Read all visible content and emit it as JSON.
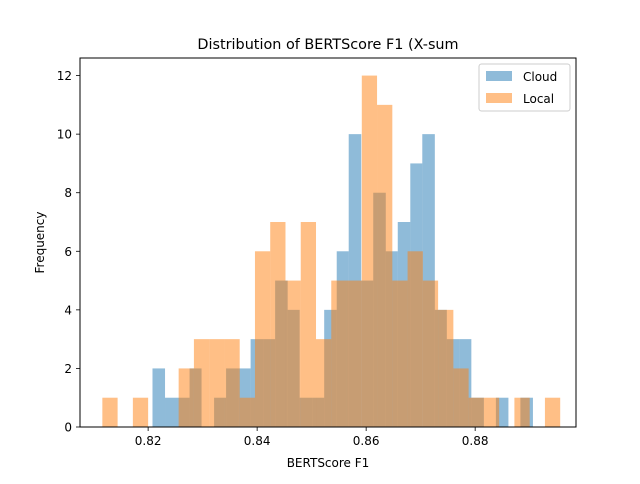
{
  "chart_data": {
    "type": "bar",
    "title": "Distribution of BERTScore F1 (X-sum",
    "xlabel": "BERTScore F1",
    "ylabel": "Frequency",
    "xlim": [
      0.8075,
      0.8985
    ],
    "ylim": [
      0,
      12.6
    ],
    "xticks": [
      {
        "value": 0.82,
        "label": "0.82"
      },
      {
        "value": 0.84,
        "label": "0.84"
      },
      {
        "value": 0.86,
        "label": "0.86"
      },
      {
        "value": 0.88,
        "label": "0.88"
      }
    ],
    "yticks": [
      {
        "value": 0,
        "label": "0"
      },
      {
        "value": 2,
        "label": "2"
      },
      {
        "value": 4,
        "label": "4"
      },
      {
        "value": 6,
        "label": "6"
      },
      {
        "value": 8,
        "label": "8"
      },
      {
        "value": 10,
        "label": "10"
      },
      {
        "value": 12,
        "label": "12"
      }
    ],
    "grid": false,
    "legend_position": "top-right",
    "series": [
      {
        "name": "Cloud",
        "color": "#1f77b4",
        "opacity": 0.5,
        "bins": [
          {
            "x0": 0.8208,
            "x1": 0.8231,
            "count": 2
          },
          {
            "x0": 0.8231,
            "x1": 0.8253,
            "count": 1
          },
          {
            "x0": 0.8253,
            "x1": 0.8276,
            "count": 1
          },
          {
            "x0": 0.8276,
            "x1": 0.8298,
            "count": 2
          },
          {
            "x0": 0.8321,
            "x1": 0.8343,
            "count": 1
          },
          {
            "x0": 0.8343,
            "x1": 0.8366,
            "count": 2
          },
          {
            "x0": 0.8366,
            "x1": 0.8388,
            "count": 2
          },
          {
            "x0": 0.8388,
            "x1": 0.8411,
            "count": 3
          },
          {
            "x0": 0.8411,
            "x1": 0.8433,
            "count": 3
          },
          {
            "x0": 0.8433,
            "x1": 0.8456,
            "count": 5
          },
          {
            "x0": 0.8456,
            "x1": 0.8478,
            "count": 4
          },
          {
            "x0": 0.8478,
            "x1": 0.8501,
            "count": 1
          },
          {
            "x0": 0.8501,
            "x1": 0.8523,
            "count": 1
          },
          {
            "x0": 0.8523,
            "x1": 0.8546,
            "count": 4
          },
          {
            "x0": 0.8546,
            "x1": 0.8568,
            "count": 6
          },
          {
            "x0": 0.8568,
            "x1": 0.8591,
            "count": 10
          },
          {
            "x0": 0.8591,
            "x1": 0.8613,
            "count": 5
          },
          {
            "x0": 0.8613,
            "x1": 0.8636,
            "count": 8
          },
          {
            "x0": 0.8636,
            "x1": 0.8658,
            "count": 6
          },
          {
            "x0": 0.8658,
            "x1": 0.8681,
            "count": 7
          },
          {
            "x0": 0.8681,
            "x1": 0.8703,
            "count": 9
          },
          {
            "x0": 0.8703,
            "x1": 0.8726,
            "count": 10
          },
          {
            "x0": 0.8726,
            "x1": 0.8748,
            "count": 4
          },
          {
            "x0": 0.8748,
            "x1": 0.8771,
            "count": 3
          },
          {
            "x0": 0.8771,
            "x1": 0.8793,
            "count": 3
          },
          {
            "x0": 0.8793,
            "x1": 0.8816,
            "count": 1
          },
          {
            "x0": 0.8838,
            "x1": 0.8861,
            "count": 1
          },
          {
            "x0": 0.8883,
            "x1": 0.8906,
            "count": 1
          }
        ]
      },
      {
        "name": "Local",
        "color": "#ff7f0e",
        "opacity": 0.5,
        "bins": [
          {
            "x0": 0.8116,
            "x1": 0.8144,
            "count": 1
          },
          {
            "x0": 0.8172,
            "x1": 0.82,
            "count": 1
          },
          {
            "x0": 0.8256,
            "x1": 0.8284,
            "count": 2
          },
          {
            "x0": 0.8284,
            "x1": 0.8312,
            "count": 3
          },
          {
            "x0": 0.8312,
            "x1": 0.834,
            "count": 3
          },
          {
            "x0": 0.834,
            "x1": 0.8368,
            "count": 3
          },
          {
            "x0": 0.8368,
            "x1": 0.8396,
            "count": 1
          },
          {
            "x0": 0.8396,
            "x1": 0.8424,
            "count": 6
          },
          {
            "x0": 0.8424,
            "x1": 0.8452,
            "count": 7
          },
          {
            "x0": 0.8452,
            "x1": 0.848,
            "count": 5
          },
          {
            "x0": 0.848,
            "x1": 0.8508,
            "count": 7
          },
          {
            "x0": 0.8508,
            "x1": 0.8536,
            "count": 3
          },
          {
            "x0": 0.8536,
            "x1": 0.8564,
            "count": 5
          },
          {
            "x0": 0.8564,
            "x1": 0.8592,
            "count": 5
          },
          {
            "x0": 0.8592,
            "x1": 0.862,
            "count": 12
          },
          {
            "x0": 0.862,
            "x1": 0.8648,
            "count": 11
          },
          {
            "x0": 0.8648,
            "x1": 0.8676,
            "count": 5
          },
          {
            "x0": 0.8676,
            "x1": 0.8704,
            "count": 6
          },
          {
            "x0": 0.8704,
            "x1": 0.8732,
            "count": 5
          },
          {
            "x0": 0.8732,
            "x1": 0.876,
            "count": 4
          },
          {
            "x0": 0.876,
            "x1": 0.8788,
            "count": 2
          },
          {
            "x0": 0.8788,
            "x1": 0.8816,
            "count": 1
          },
          {
            "x0": 0.8816,
            "x1": 0.8844,
            "count": 1
          },
          {
            "x0": 0.8872,
            "x1": 0.89,
            "count": 1
          },
          {
            "x0": 0.8928,
            "x1": 0.8956,
            "count": 1
          }
        ]
      }
    ]
  }
}
